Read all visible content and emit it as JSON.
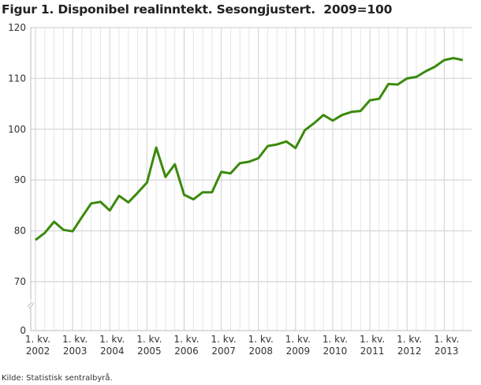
{
  "title": "Figur 1. Disponibel realinntekt. Sesongjustert.  2009=100",
  "source": "Kilde: Statistisk sentralbyrå.",
  "chart_data": {
    "type": "line",
    "title": "Figur 1. Disponibel realinntekt. Sesongjustert.  2009=100",
    "xlabel": "",
    "ylabel": "",
    "ylim": [
      70,
      120
    ],
    "yticks": [
      0,
      70,
      80,
      90,
      100,
      110,
      120
    ],
    "y_axis_break": "between 0 and 70",
    "x_start": "2002Q1",
    "x_tick_labels": [
      {
        "line1": "1. kv.",
        "line2": "2002"
      },
      {
        "line1": "1. kv.",
        "line2": "2003"
      },
      {
        "line1": "1. kv.",
        "line2": "2004"
      },
      {
        "line1": "1. kv.",
        "line2": "2005"
      },
      {
        "line1": "1. kv.",
        "line2": "2006"
      },
      {
        "line1": "1. kv.",
        "line2": "2007"
      },
      {
        "line1": "1. kv.",
        "line2": "2008"
      },
      {
        "line1": "1. kv.",
        "line2": "2009"
      },
      {
        "line1": "1. kv.",
        "line2": "2010"
      },
      {
        "line1": "1. kv.",
        "line2": "2011"
      },
      {
        "line1": "1. kv.",
        "line2": "2012"
      },
      {
        "line1": "1. kv.",
        "line2": "2013"
      }
    ],
    "grid": true,
    "series": [
      {
        "name": "Disponibel realinntekt",
        "color": "#3a8a0c",
        "values": [
          78.2,
          79.6,
          81.8,
          80.2,
          79.9,
          82.7,
          85.4,
          85.7,
          84.0,
          86.9,
          85.6,
          87.5,
          89.5,
          96.4,
          90.6,
          93.1,
          87.1,
          86.2,
          87.6,
          87.6,
          91.6,
          91.3,
          93.3,
          93.6,
          94.3,
          96.7,
          97.0,
          97.6,
          96.3,
          99.8,
          101.2,
          102.8,
          101.7,
          102.8,
          103.4,
          103.6,
          105.7,
          106.0,
          108.9,
          108.8,
          110.0,
          110.3,
          111.4,
          112.3,
          113.6,
          114.0,
          113.6
        ]
      }
    ]
  }
}
